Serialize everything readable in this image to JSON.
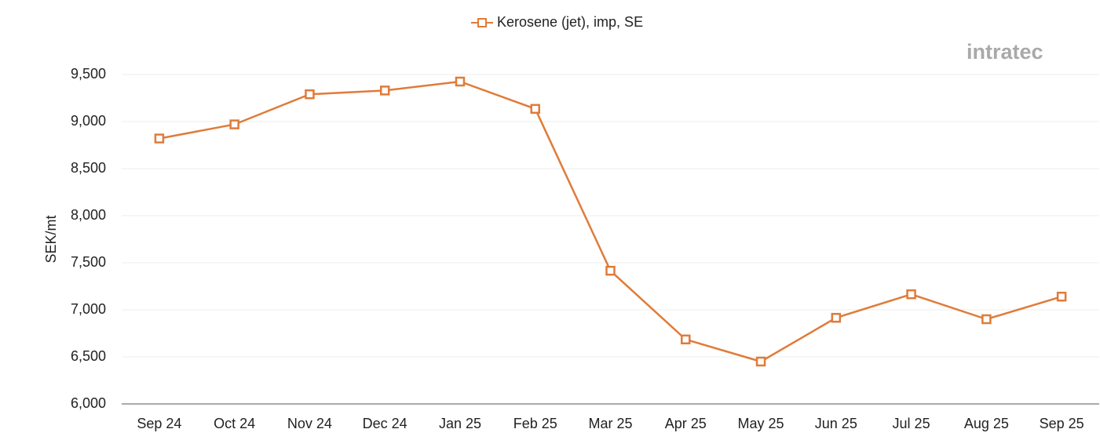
{
  "logo": "intratec",
  "chart_data": {
    "type": "line",
    "y_label": "SEK/mt",
    "categories": [
      "Sep 24",
      "Oct 24",
      "Nov 24",
      "Dec 24",
      "Jan 25",
      "Feb 25",
      "Mar 25",
      "Apr 25",
      "May 25",
      "Jun 25",
      "Jul 25",
      "Aug 25",
      "Sep 25"
    ],
    "series": [
      {
        "name": "Kerosene (jet), imp, SE",
        "color": "#e07b39",
        "values": [
          8820,
          8970,
          9290,
          9330,
          9425,
          9135,
          7415,
          6685,
          6450,
          6915,
          7165,
          6900,
          7140
        ]
      }
    ],
    "ylim": [
      6000,
      9500
    ],
    "yticks": [
      {
        "value": 6000,
        "label": "6,000"
      },
      {
        "value": 6500,
        "label": "6,500"
      },
      {
        "value": 7000,
        "label": "7,000"
      },
      {
        "value": 7500,
        "label": "7,500"
      },
      {
        "value": 8000,
        "label": "8,000"
      },
      {
        "value": 8500,
        "label": "8,500"
      },
      {
        "value": 9000,
        "label": "9,000"
      },
      {
        "value": 9500,
        "label": "9,500"
      }
    ],
    "grid": true,
    "legend": "top"
  }
}
